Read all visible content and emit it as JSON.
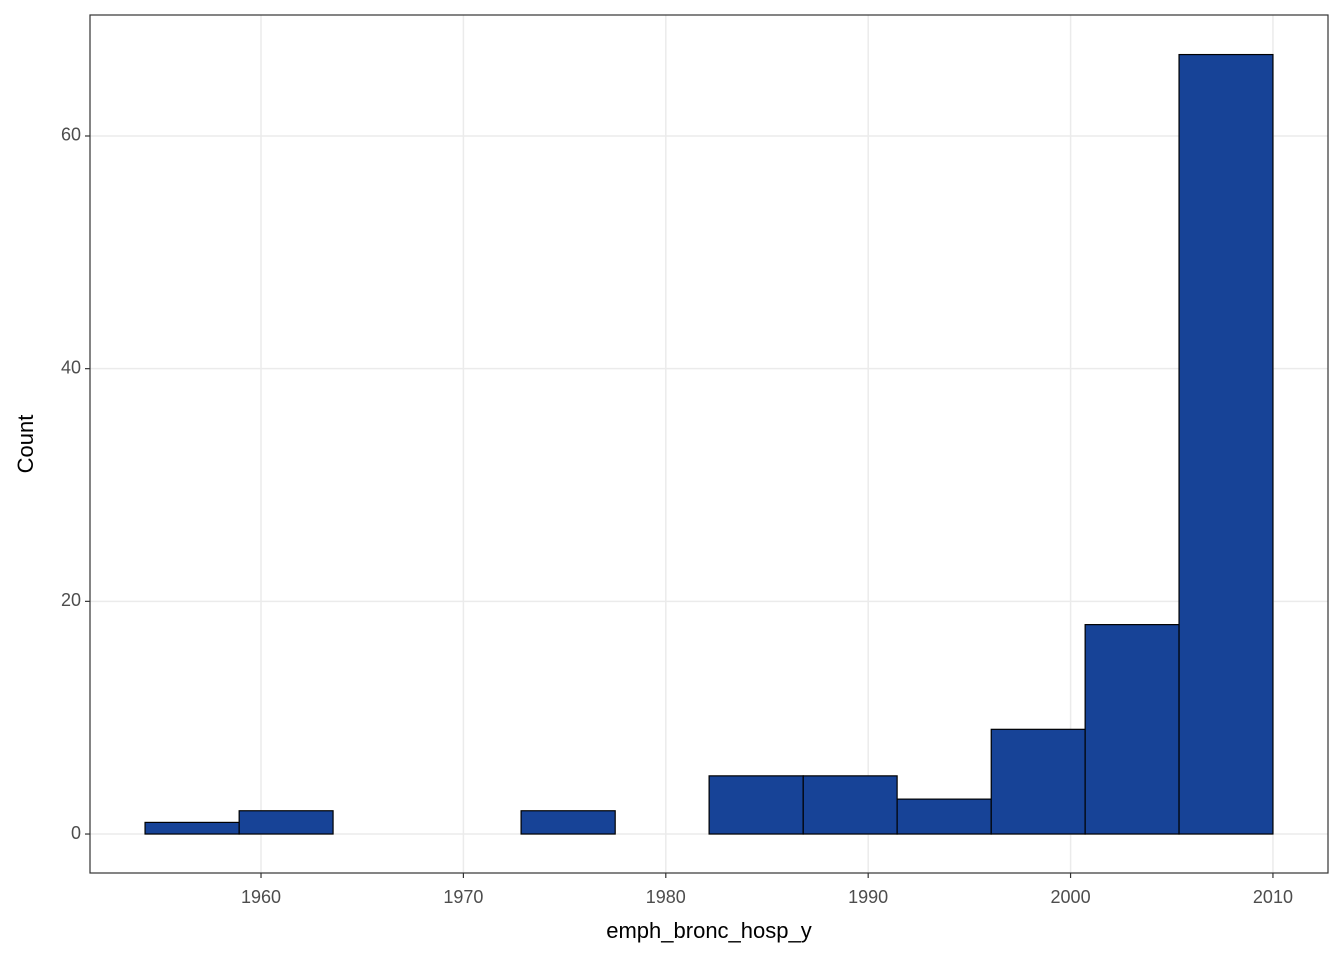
{
  "chart_data": {
    "type": "histogram",
    "x_label": "emph_bronc_hosp_y",
    "y_label": "Count",
    "bins": [
      1954.27,
      1958.92,
      1963.56,
      1968.21,
      1972.85,
      1977.5,
      1982.14,
      1986.79,
      1991.43,
      1996.08,
      2000.72,
      2005.36,
      2010
    ],
    "values": [
      1,
      2,
      0,
      0,
      2,
      0,
      5,
      5,
      3,
      9,
      18,
      67
    ],
    "color": "#174397",
    "xlim": [
      1951.55,
      2012.72
    ],
    "xticks": [
      1960,
      1970,
      1980,
      1990,
      2000,
      2010
    ],
    "ylim": [
      -3.35,
      70.4
    ],
    "yticks": [
      0,
      20,
      40,
      60
    ],
    "grid": true
  }
}
